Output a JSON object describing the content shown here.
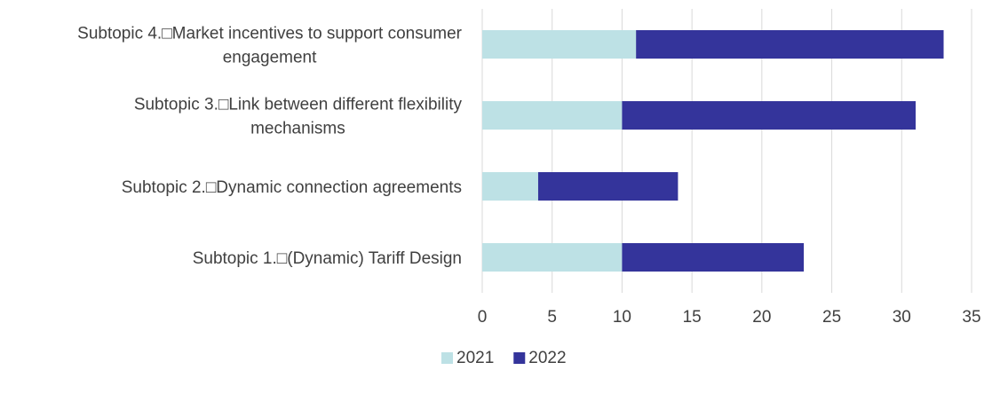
{
  "chart_data": {
    "type": "bar",
    "orientation": "horizontal",
    "stacked": true,
    "categories": [
      [
        "Subtopic 1.□(Dynamic) Tariff Design"
      ],
      [
        "Subtopic 2.□Dynamic connection agreements"
      ],
      [
        "Subtopic 3.□Link between different flexibility",
        "mechanisms"
      ],
      [
        "Subtopic 4.□Market incentives to support consumer",
        "engagement"
      ]
    ],
    "series": [
      {
        "name": "2021",
        "values": [
          10,
          4,
          10,
          11
        ],
        "color": "#bde1e5"
      },
      {
        "name": "2022",
        "values": [
          13,
          10,
          21,
          22
        ],
        "color": "#34349b"
      }
    ],
    "xlim": [
      0,
      35
    ],
    "xticks": [
      "0",
      "5",
      "10",
      "15",
      "20",
      "25",
      "30",
      "35"
    ],
    "grid": "vertical",
    "legend": "bottom-center"
  }
}
